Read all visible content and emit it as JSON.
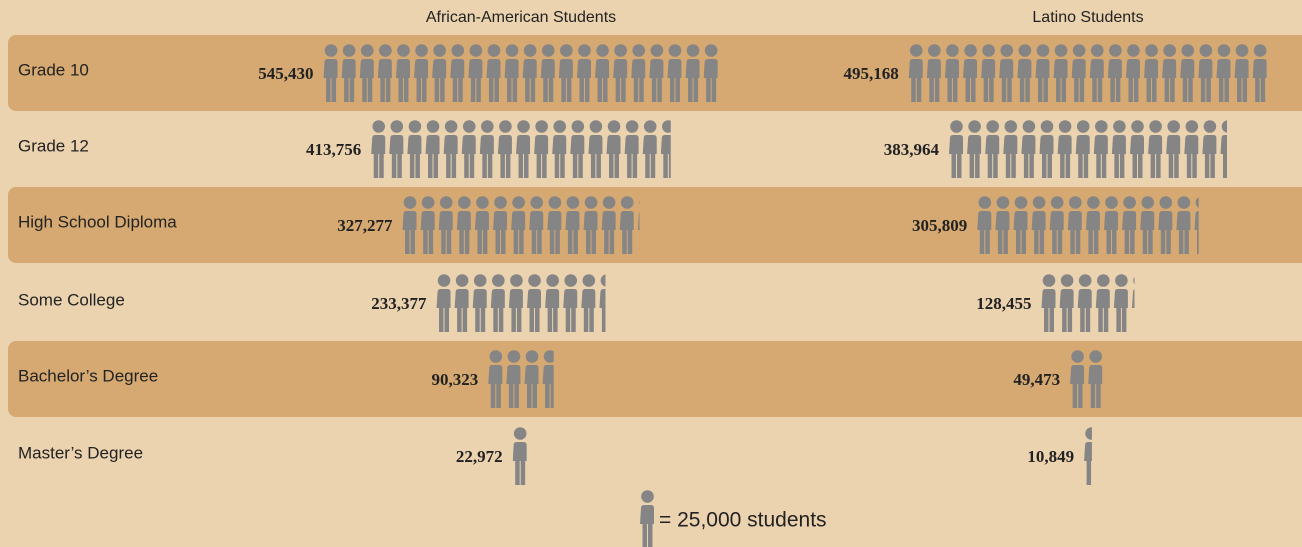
{
  "chart_data": {
    "type": "pictograph",
    "categories": [
      "Grade 10",
      "Grade 12",
      "High School Diploma",
      "Some College",
      "Bachelor’s Degree",
      "Master’s Degree"
    ],
    "series": [
      {
        "name": "African-American Students",
        "color": "#858585",
        "values": [
          545430,
          413756,
          327277,
          233377,
          90323,
          22972
        ],
        "value_labels": [
          "545,430",
          "413,756",
          "327,277",
          "233,377",
          "90,323",
          "22,972"
        ]
      },
      {
        "name": "Latino Students",
        "color": "#858585",
        "values": [
          495168,
          383964,
          305809,
          128455,
          49473,
          10849
        ],
        "value_labels": [
          "495,168",
          "383,964",
          "305,809",
          "128,455",
          "49,473",
          "10,849"
        ]
      }
    ],
    "unit": {
      "value": 25000,
      "label": "= 25,000 students"
    }
  }
}
